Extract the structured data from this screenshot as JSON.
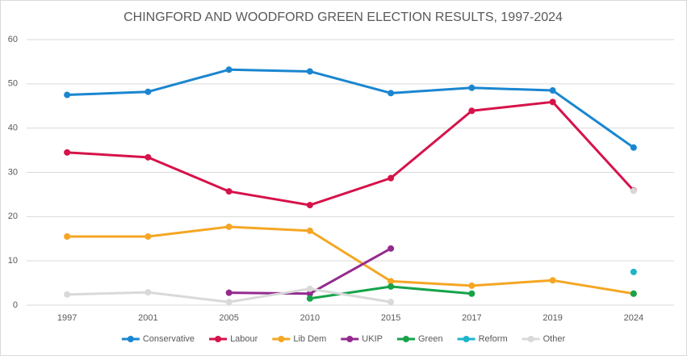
{
  "chart_data": {
    "type": "line",
    "title": "CHINGFORD AND WOODFORD GREEN ELECTION RESULTS, 1997-2024",
    "categories": [
      "1997",
      "2001",
      "2005",
      "2010",
      "2015",
      "2017",
      "2019",
      "2024"
    ],
    "ylim": [
      0,
      60
    ],
    "yticks": [
      0,
      10,
      20,
      30,
      40,
      50,
      60
    ],
    "grid": true,
    "legend": "bottom",
    "series": [
      {
        "name": "Conservative",
        "color": "#1a86d0",
        "values": [
          47.5,
          48.2,
          53.2,
          52.8,
          47.9,
          49.1,
          48.5,
          35.6
        ]
      },
      {
        "name": "Labour",
        "color": "#d6124a",
        "values": [
          34.5,
          33.4,
          25.7,
          22.6,
          28.7,
          43.9,
          45.9,
          25.9
        ]
      },
      {
        "name": "Lib Dem",
        "color": "#f5a623",
        "values": [
          15.5,
          15.5,
          17.7,
          16.8,
          5.4,
          4.4,
          5.6,
          2.6
        ]
      },
      {
        "name": "UKIP",
        "color": "#932b8f",
        "values": [
          null,
          null,
          2.8,
          2.6,
          12.8,
          null,
          null,
          null
        ]
      },
      {
        "name": "Green",
        "color": "#16a34a",
        "values": [
          null,
          null,
          null,
          1.5,
          4.2,
          2.6,
          null,
          2.6
        ]
      },
      {
        "name": "Reform",
        "color": "#1cb5c9",
        "values": [
          null,
          null,
          null,
          null,
          null,
          null,
          null,
          7.5
        ]
      },
      {
        "name": "Other",
        "color": "#d9d9d9",
        "values": [
          2.4,
          2.9,
          0.7,
          3.7,
          0.7,
          null,
          null,
          25.8
        ]
      }
    ]
  }
}
